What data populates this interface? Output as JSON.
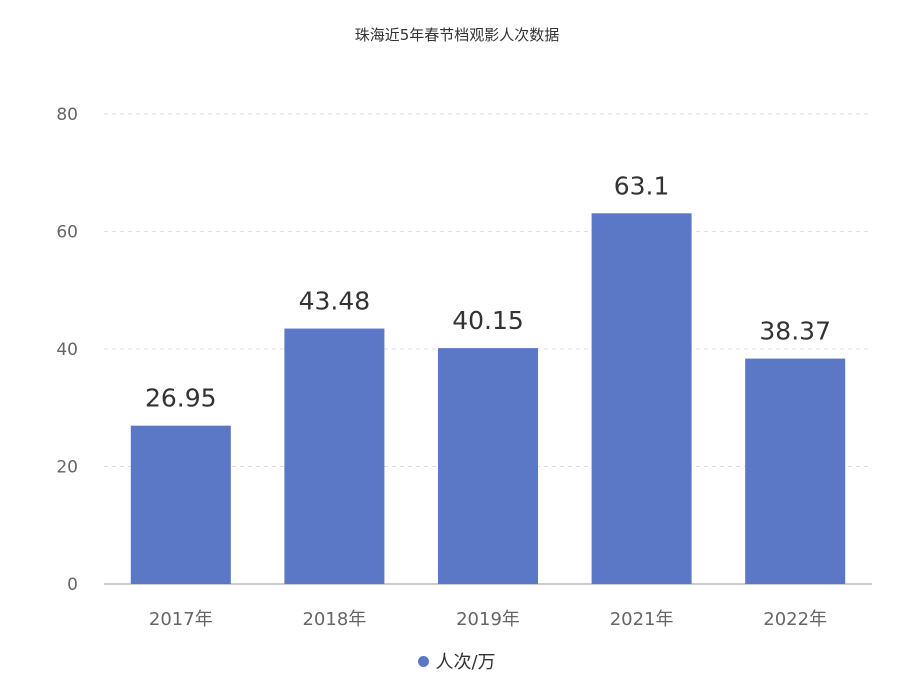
{
  "chart_data": {
    "type": "bar",
    "title": "珠海近5年春节档观影人次数据",
    "categories": [
      "2017年",
      "2018年",
      "2019年",
      "2021年",
      "2022年"
    ],
    "series": [
      {
        "name": "人次/万",
        "values": [
          26.95,
          43.48,
          40.15,
          63.1,
          38.37
        ]
      }
    ],
    "data_labels": [
      "26.95",
      "43.48",
      "40.15",
      "63.1",
      "38.37"
    ],
    "y_ticks": [
      "0",
      "20",
      "40",
      "60",
      "80"
    ],
    "ylim": [
      0,
      80
    ],
    "xlabel": "",
    "ylabel": "",
    "grid": true,
    "legend_position": "bottom-center",
    "colors": {
      "bar": "#5b78c7",
      "grid": "#dddddd",
      "axis": "#999999"
    }
  }
}
